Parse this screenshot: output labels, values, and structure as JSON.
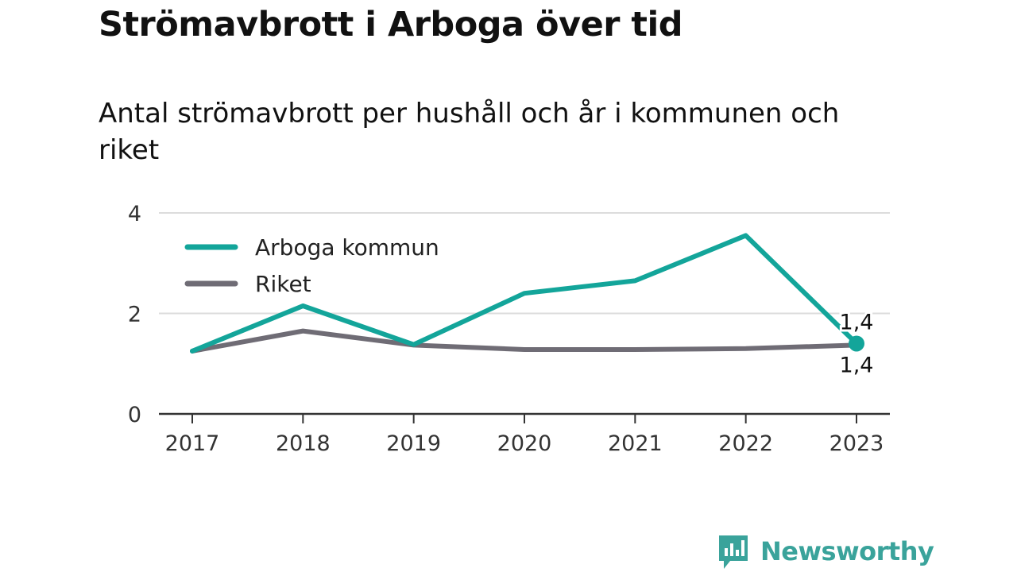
{
  "title": "Strömavbrott i Arboga över tid",
  "subtitle": "Antal strömavbrott per hushåll och år i kommunen och riket",
  "brand": {
    "name": "Newsworthy",
    "icon": "newsworthy-logo-icon",
    "color": "#3aa39b"
  },
  "chart_data": {
    "type": "line",
    "x": [
      "2017",
      "2018",
      "2019",
      "2020",
      "2021",
      "2022",
      "2023"
    ],
    "series": [
      {
        "name": "Arboga kommun",
        "color": "#13a59a",
        "values": [
          1.25,
          2.15,
          1.38,
          2.4,
          2.65,
          3.55,
          1.4
        ]
      },
      {
        "name": "Riket",
        "color": "#6f6c75",
        "values": [
          1.25,
          1.65,
          1.37,
          1.28,
          1.28,
          1.3,
          1.37
        ]
      }
    ],
    "ylim": [
      0,
      4
    ],
    "yticks": [
      "0",
      "2",
      "4"
    ],
    "grid": true,
    "legend": "top-left",
    "annotations": [
      {
        "series": "Arboga kommun",
        "x": "2023",
        "text": "1,4",
        "position": "above"
      },
      {
        "series": "Riket",
        "x": "2023",
        "text": "1,4",
        "position": "below"
      }
    ]
  }
}
